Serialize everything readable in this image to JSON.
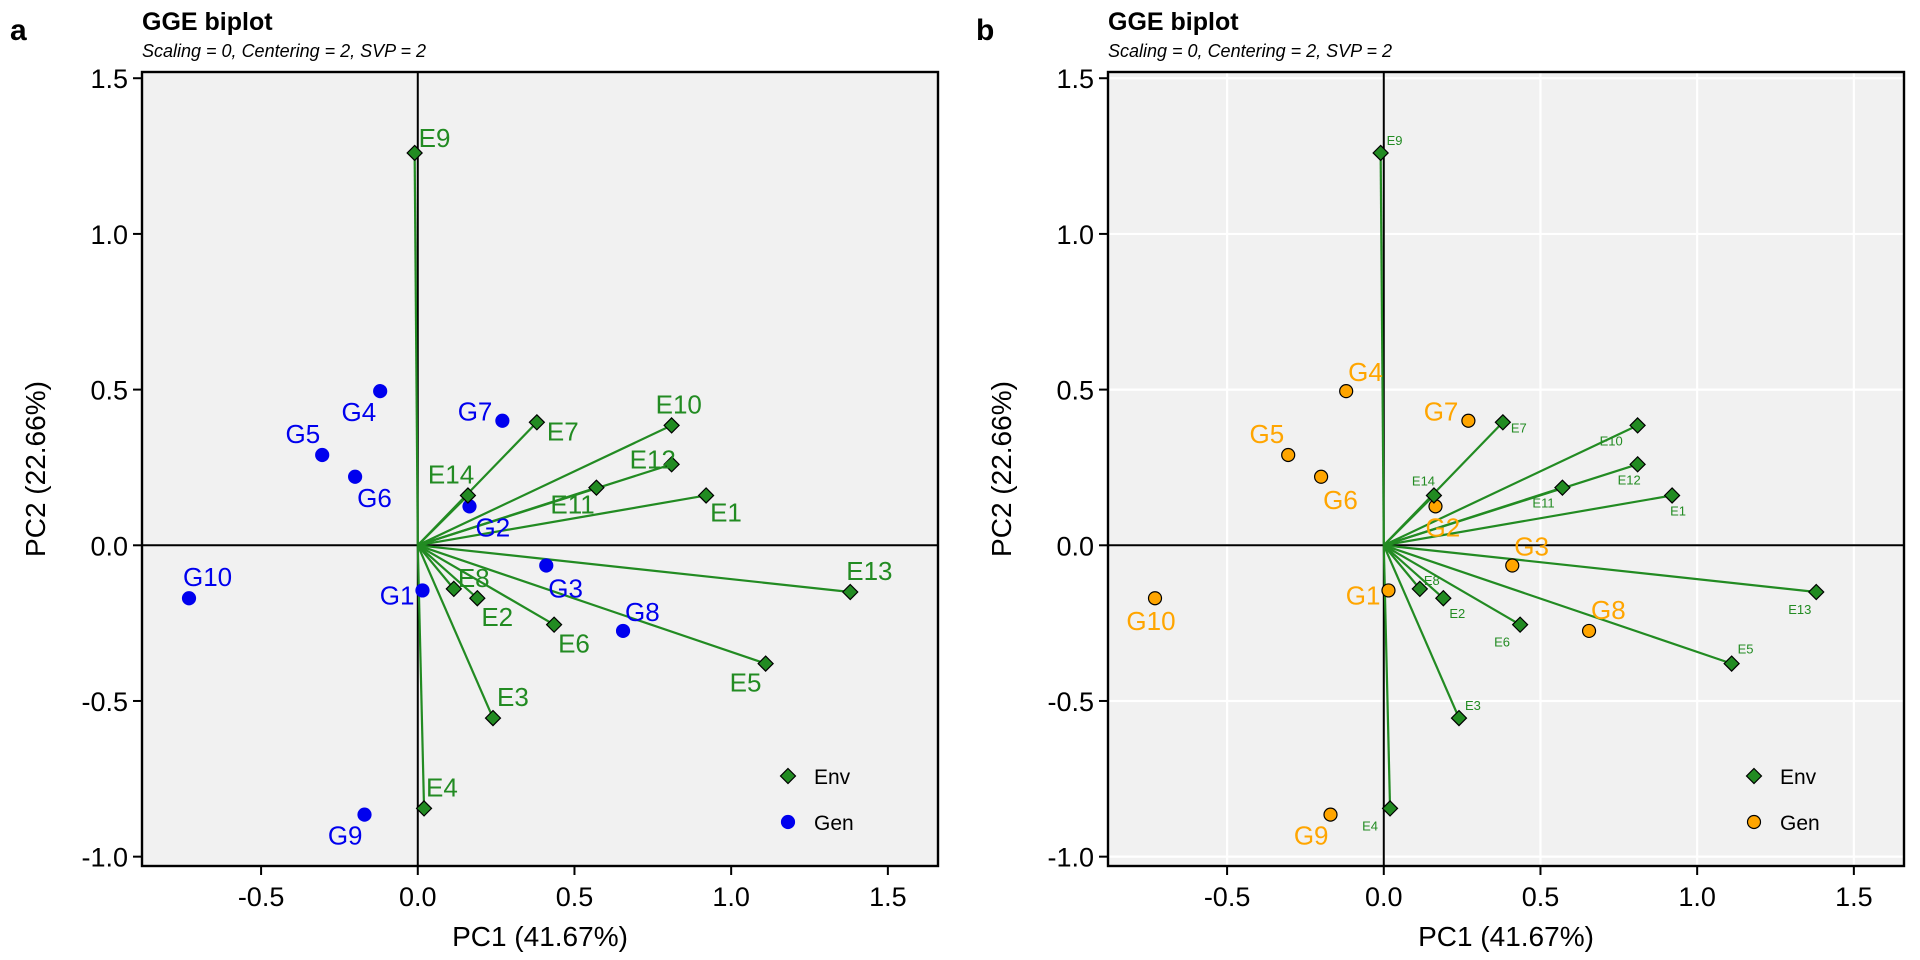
{
  "chart_data": [
    {
      "panel": "a",
      "type": "scatter",
      "title": "GGE biplot",
      "subtitle": "Scaling = 0, Centering = 2, SVP = 2",
      "xlabel": "PC1 (41.67%)",
      "ylabel": "PC2 (22.66%)",
      "xlim": [
        -0.88,
        1.66
      ],
      "ylim": [
        -1.03,
        1.52
      ],
      "xticks": [
        -0.5,
        0.0,
        0.5,
        1.0,
        1.5
      ],
      "xtick_labels": [
        "-0.5",
        "0.0",
        "0.5",
        "1.0",
        "1.5"
      ],
      "yticks": [
        -1.0,
        -0.5,
        0.0,
        0.5,
        1.0,
        1.5
      ],
      "ytick_labels": [
        "-1.0",
        "-0.5",
        "0.0",
        "0.5",
        "1.0",
        "1.5"
      ],
      "grid": false,
      "legend_position": "bottom-right",
      "colors": {
        "env": "#228B22",
        "gen": "#0000EE",
        "panel_bg": "#F1F1F1",
        "env_vector": "#228B22",
        "gen_marker_stroke": "#0000EE"
      },
      "env_label_size": "large",
      "series": [
        {
          "name": "Env",
          "marker": "diamond",
          "vectors": true,
          "points": [
            {
              "label": "E1",
              "x": 0.92,
              "y": 0.16
            },
            {
              "label": "E2",
              "x": 0.19,
              "y": -0.17
            },
            {
              "label": "E3",
              "x": 0.24,
              "y": -0.555
            },
            {
              "label": "E4",
              "x": 0.02,
              "y": -0.845
            },
            {
              "label": "E5",
              "x": 1.11,
              "y": -0.38
            },
            {
              "label": "E6",
              "x": 0.435,
              "y": -0.255
            },
            {
              "label": "E7",
              "x": 0.38,
              "y": 0.395
            },
            {
              "label": "E8",
              "x": 0.115,
              "y": -0.14
            },
            {
              "label": "E9",
              "x": -0.01,
              "y": 1.26
            },
            {
              "label": "E10",
              "x": 0.81,
              "y": 0.385
            },
            {
              "label": "E11",
              "x": 0.57,
              "y": 0.185
            },
            {
              "label": "E12",
              "x": 0.81,
              "y": 0.26
            },
            {
              "label": "E13",
              "x": 1.38,
              "y": -0.15
            },
            {
              "label": "E14",
              "x": 0.16,
              "y": 0.16
            }
          ]
        },
        {
          "name": "Gen",
          "marker": "circle",
          "vectors": false,
          "points": [
            {
              "label": "G1",
              "x": 0.015,
              "y": -0.145
            },
            {
              "label": "G2",
              "x": 0.165,
              "y": 0.125
            },
            {
              "label": "G3",
              "x": 0.41,
              "y": -0.065
            },
            {
              "label": "G4",
              "x": -0.12,
              "y": 0.495
            },
            {
              "label": "G5",
              "x": -0.305,
              "y": 0.29
            },
            {
              "label": "G6",
              "x": -0.2,
              "y": 0.22
            },
            {
              "label": "G7",
              "x": 0.27,
              "y": 0.4
            },
            {
              "label": "G8",
              "x": 0.655,
              "y": -0.275
            },
            {
              "label": "G9",
              "x": -0.17,
              "y": -0.865
            },
            {
              "label": "G10",
              "x": -0.73,
              "y": -0.17
            }
          ]
        }
      ]
    },
    {
      "panel": "b",
      "type": "scatter",
      "title": "GGE biplot",
      "subtitle": "Scaling = 0, Centering = 2, SVP = 2",
      "xlabel": "PC1 (41.67%)",
      "ylabel": "PC2 (22.66%)",
      "xlim": [
        -0.88,
        1.66
      ],
      "ylim": [
        -1.03,
        1.52
      ],
      "xticks": [
        -0.5,
        0.0,
        0.5,
        1.0,
        1.5
      ],
      "xtick_labels": [
        "-0.5",
        "0.0",
        "0.5",
        "1.0",
        "1.5"
      ],
      "yticks": [
        -1.0,
        -0.5,
        0.0,
        0.5,
        1.0,
        1.5
      ],
      "ytick_labels": [
        "-1.0",
        "-0.5",
        "0.0",
        "0.5",
        "1.0",
        "1.5"
      ],
      "grid": true,
      "legend_position": "bottom-right",
      "colors": {
        "env": "#228B22",
        "gen": "#FFA500",
        "panel_bg": "#F1F1F1",
        "env_vector": "#228B22",
        "gen_marker_stroke": "#000000"
      },
      "env_label_size": "small",
      "series": [
        {
          "name": "Env",
          "marker": "diamond",
          "vectors": true,
          "points": [
            {
              "label": "E1",
              "x": 0.92,
              "y": 0.16
            },
            {
              "label": "E2",
              "x": 0.19,
              "y": -0.17
            },
            {
              "label": "E3",
              "x": 0.24,
              "y": -0.555
            },
            {
              "label": "E4",
              "x": 0.02,
              "y": -0.845
            },
            {
              "label": "E5",
              "x": 1.11,
              "y": -0.38
            },
            {
              "label": "E6",
              "x": 0.435,
              "y": -0.255
            },
            {
              "label": "E7",
              "x": 0.38,
              "y": 0.395
            },
            {
              "label": "E8",
              "x": 0.115,
              "y": -0.14
            },
            {
              "label": "E9",
              "x": -0.01,
              "y": 1.26
            },
            {
              "label": "E10",
              "x": 0.81,
              "y": 0.385
            },
            {
              "label": "E11",
              "x": 0.57,
              "y": 0.185
            },
            {
              "label": "E12",
              "x": 0.81,
              "y": 0.26
            },
            {
              "label": "E13",
              "x": 1.38,
              "y": -0.15
            },
            {
              "label": "E14",
              "x": 0.16,
              "y": 0.16
            }
          ]
        },
        {
          "name": "Gen",
          "marker": "circle",
          "vectors": false,
          "points": [
            {
              "label": "G1",
              "x": 0.015,
              "y": -0.145
            },
            {
              "label": "G2",
              "x": 0.165,
              "y": 0.125
            },
            {
              "label": "G3",
              "x": 0.41,
              "y": -0.065
            },
            {
              "label": "G4",
              "x": -0.12,
              "y": 0.495
            },
            {
              "label": "G5",
              "x": -0.305,
              "y": 0.29
            },
            {
              "label": "G6",
              "x": -0.2,
              "y": 0.22
            },
            {
              "label": "G7",
              "x": 0.27,
              "y": 0.4
            },
            {
              "label": "G8",
              "x": 0.655,
              "y": -0.275
            },
            {
              "label": "G9",
              "x": -0.17,
              "y": -0.865
            },
            {
              "label": "G10",
              "x": -0.73,
              "y": -0.17
            }
          ]
        }
      ]
    }
  ]
}
